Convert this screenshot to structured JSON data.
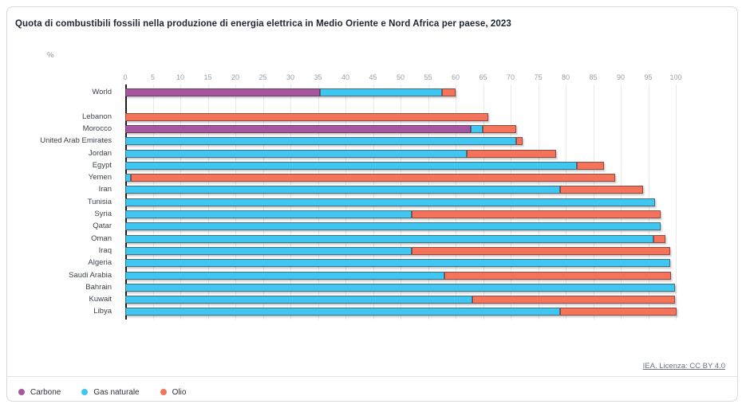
{
  "card": {
    "title": "Quota di combustibili fossili nella produzione di energia elettrica in Medio Oriente e Nord Africa per paese, 2023",
    "unit_label": "%",
    "source_link": "IEA. Licenza: CC BY 4.0"
  },
  "legend": [
    {
      "label": "Carbone",
      "color": "#A6569E"
    },
    {
      "label": "Gas naturale",
      "color": "#3FC6F1"
    },
    {
      "label": "Olio",
      "color": "#F4735A"
    }
  ],
  "chart_data": {
    "type": "bar",
    "orientation": "horizontal",
    "stacked": true,
    "title": "Quota di combustibili fossili nella produzione di energia elettrica in Medio Oriente e Nord Africa per paese, 2023",
    "xlabel": "",
    "ylabel": "%",
    "xlim": [
      0,
      100
    ],
    "x_ticks": [
      0,
      5,
      10,
      15,
      20,
      25,
      30,
      35,
      40,
      45,
      50,
      55,
      60,
      65,
      70,
      75,
      80,
      85,
      90,
      95,
      100
    ],
    "grid": true,
    "legend_position": "bottom",
    "gap_after_first_row": true,
    "categories": [
      "World",
      "Lebanon",
      "Morocco",
      "United Arab Emirates",
      "Jordan",
      "Egypt",
      "Yemen",
      "Iran",
      "Tunisia",
      "Syria",
      "Qatar",
      "Oman",
      "Iraq",
      "Algeria",
      "Saudi Arabia",
      "Bahrain",
      "Kuwait",
      "Libya"
    ],
    "series": [
      {
        "name": "Carbone",
        "color": "#A6569E",
        "values": [
          35.4,
          0,
          62.8,
          0,
          0,
          0,
          0,
          0,
          0,
          0,
          0,
          0,
          0,
          0,
          0,
          0,
          0,
          0
        ]
      },
      {
        "name": "Gas naturale",
        "color": "#3FC6F1",
        "values": [
          22.1,
          0,
          2.1,
          71,
          62,
          82,
          1,
          79,
          96.2,
          52,
          97.3,
          96,
          52,
          99,
          58,
          99.8,
          63,
          79
        ]
      },
      {
        "name": "Olio",
        "color": "#F4735A",
        "values": [
          2.5,
          66,
          6.1,
          1.2,
          16.2,
          5,
          88,
          15,
          0,
          45.2,
          0,
          2.1,
          47,
          0,
          41.2,
          0,
          36.9,
          21.2
        ]
      }
    ]
  }
}
